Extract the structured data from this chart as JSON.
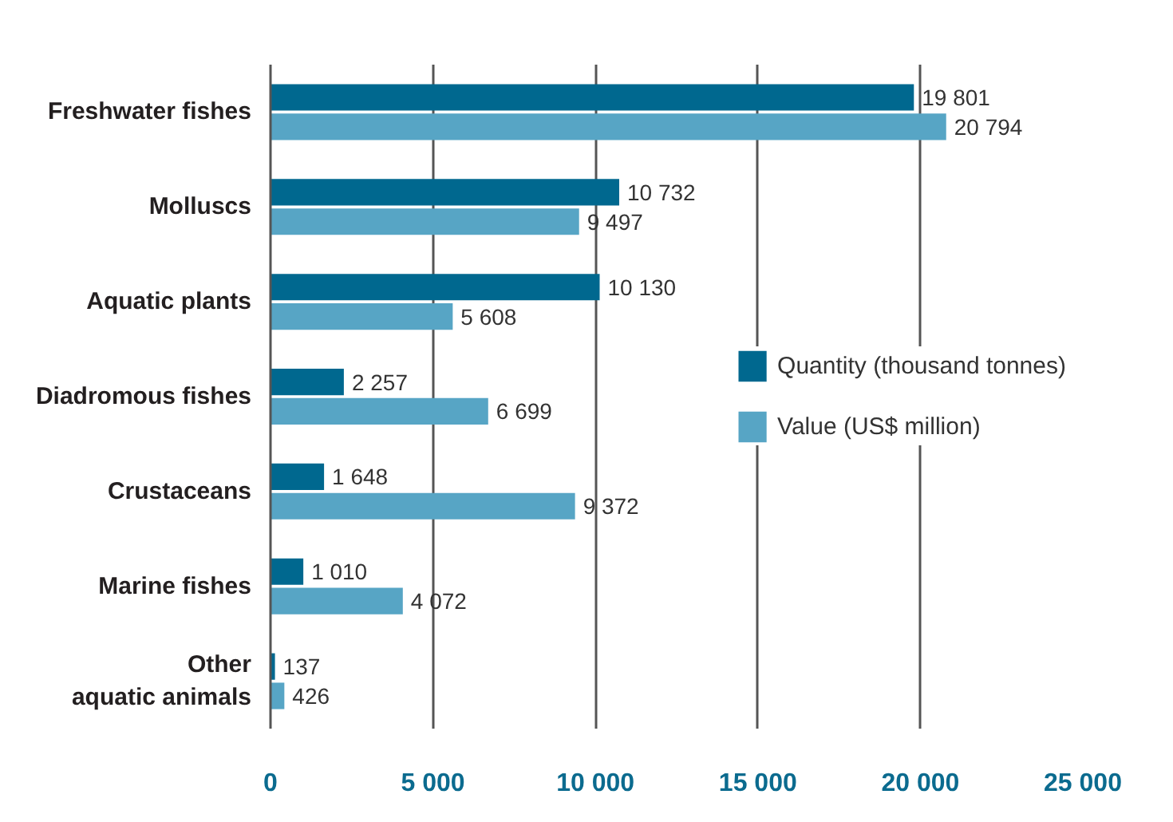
{
  "chart_data": {
    "type": "bar",
    "orientation": "horizontal",
    "categories": [
      "Freshwater fishes",
      "Molluscs",
      "Aquatic plants",
      "Diadromous fishes",
      "Crustaceans",
      "Marine fishes",
      "Other\naquatic animals"
    ],
    "series": [
      {
        "name": "Quantity (thousand tonnes)",
        "color": "#00688f",
        "values": [
          19801,
          10732,
          10130,
          2257,
          1648,
          1010,
          137
        ],
        "value_labels": [
          "19 801",
          "10 732",
          "10 130",
          "2 257",
          "1 648",
          "1 010",
          "137"
        ]
      },
      {
        "name": "Value (US$ million)",
        "color": "#57a5c5",
        "values": [
          20794,
          9497,
          5608,
          6699,
          9372,
          4072,
          426
        ],
        "value_labels": [
          "20 794",
          "9 497",
          "5 608",
          "6 699",
          "9 372",
          "4 072",
          "426"
        ]
      }
    ],
    "xlim": [
      0,
      25000
    ],
    "xticks": [
      0,
      {
        "value": 5000,
        "label": "5 000"
      },
      {
        "value": 10000,
        "label": "10 000"
      },
      {
        "value": 15000,
        "label": "15 000"
      },
      {
        "value": 20000,
        "label": "20 000"
      },
      {
        "value": 25000,
        "label": "25 000"
      }
    ],
    "grid": "x",
    "legend": "right"
  }
}
